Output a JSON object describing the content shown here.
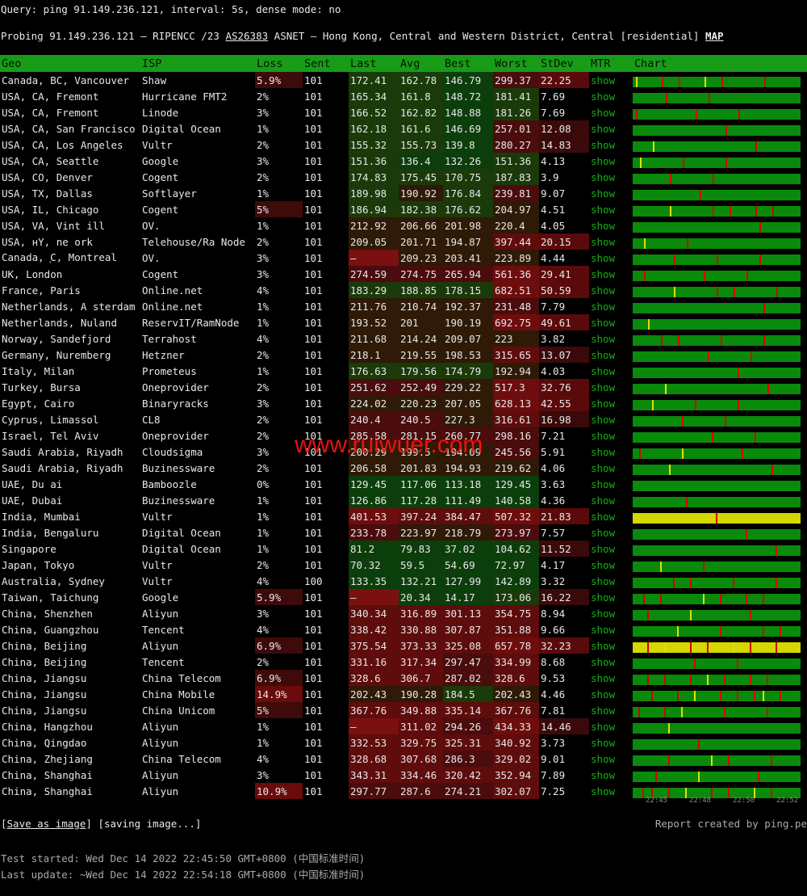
{
  "query_line": "Query: ping 91.149.236.121, interval: 5s, dense mode: no",
  "probe": {
    "prefix": "Probing 91.149.236.121 — RIPENCC /23 ",
    "asn": "AS26383",
    "suffix": " ASNET — Hong Kong, Central and Western District, Central [residential] ",
    "map": "MAP"
  },
  "columns": [
    "Geo",
    "ISP",
    "Loss",
    "Sent",
    "Last",
    "Avg",
    "Best",
    "Worst",
    "StDev",
    "MTR",
    "Chart"
  ],
  "rows": [
    {
      "geo": "Canada, BC, Vancouver",
      "isp": "Shaw",
      "loss": "5.9%",
      "sent": "101",
      "last": "172.41",
      "avg": "162.78",
      "best": "146.79",
      "worst": "299.37",
      "stdev": "22.25"
    },
    {
      "geo": "USA, CA, Fremont",
      "isp": "Hurricane FMT2",
      "loss": "2%",
      "sent": "101",
      "last": "165.34",
      "avg": "161.8",
      "best": "148.72",
      "worst": "181.41",
      "stdev": "7.69"
    },
    {
      "geo": "USA, CA, Fremont",
      "isp": "Linode",
      "loss": "3%",
      "sent": "101",
      "last": "166.52",
      "avg": "162.82",
      "best": "148.88",
      "worst": "181.26",
      "stdev": "7.69"
    },
    {
      "geo": "USA, CA, San Francisco",
      "isp": "Digital Ocean",
      "loss": "1%",
      "sent": "101",
      "last": "162.18",
      "avg": "161.6",
      "best": "146.69",
      "worst": "257.01",
      "stdev": "12.08"
    },
    {
      "geo": "USA, CA, Los Angeles",
      "isp": "Vultr",
      "loss": "2%",
      "sent": "101",
      "last": "155.32",
      "avg": "155.73",
      "best": "139.8",
      "worst": "280.27",
      "stdev": "14.83"
    },
    {
      "geo": "USA, CA, Seattle",
      "isp": "Google",
      "loss": "3%",
      "sent": "101",
      "last": "151.36",
      "avg": "136.4",
      "best": "132.26",
      "worst": "151.36",
      "stdev": "4.13"
    },
    {
      "geo": "USA, CO, Denver",
      "isp": "Cogent",
      "loss": "2%",
      "sent": "101",
      "last": "174.83",
      "avg": "175.45",
      "best": "170.75",
      "worst": "187.83",
      "stdev": "3.9"
    },
    {
      "geo": "USA, TX, Dallas",
      "isp": "Softlayer",
      "loss": "1%",
      "sent": "101",
      "last": "189.98",
      "avg": "190.92",
      "best": "176.84",
      "worst": "239.81",
      "stdev": "9.07"
    },
    {
      "geo": "USA, IL, Chicago",
      "isp": "Cogent",
      "loss": "5%",
      "sent": "101",
      "last": "186.94",
      "avg": "182.38",
      "best": "176.62",
      "worst": "204.97",
      "stdev": "4.51"
    },
    {
      "geo": "USA, VA, Vint  ill",
      "isp": "OV.",
      "loss": "1%",
      "sent": "101",
      "last": "212.92",
      "avg": "206.66",
      "best": "201.98",
      "worst": "220.4",
      "stdev": "4.05"
    },
    {
      "geo": "USA, нY, ne  ork",
      "isp": "Telehouse/Ra Node",
      "loss": "2%",
      "sent": "101",
      "last": "209.05",
      "avg": "201.71",
      "best": "194.87",
      "worst": "397.44",
      "stdev": "20.15"
    },
    {
      "geo": "Canada, ͅC, Montreal",
      "isp": "OV.",
      "loss": "3%",
      "sent": "101",
      "last": "—",
      "avg": "209.23",
      "best": "203.41",
      "worst": "223.89",
      "stdev": "4.44"
    },
    {
      "geo": "UK, London",
      "isp": "Cogent",
      "loss": "3%",
      "sent": "101",
      "last": "274.59",
      "avg": "274.75",
      "best": "265.94",
      "worst": "561.36",
      "stdev": "29.41"
    },
    {
      "geo": "France, Paris",
      "isp": "Online.net",
      "loss": "4%",
      "sent": "101",
      "last": "183.29",
      "avg": "188.85",
      "best": "178.15",
      "worst": "682.51",
      "stdev": "50.59"
    },
    {
      "geo": "Netherlands, A sterdam",
      "isp": "Online.net",
      "loss": "1%",
      "sent": "101",
      "last": "211.76",
      "avg": "210.74",
      "best": "192.37",
      "worst": "231.48",
      "stdev": "7.79"
    },
    {
      "geo": "Netherlands, Nuland",
      "isp": "ReservIT/RamNode",
      "loss": "1%",
      "sent": "101",
      "last": "193.52",
      "avg": "201",
      "best": "190.19",
      "worst": "692.75",
      "stdev": "49.61"
    },
    {
      "geo": "Norway, Sandefjord",
      "isp": "Terrahost",
      "loss": "4%",
      "sent": "101",
      "last": "211.68",
      "avg": "214.24",
      "best": "209.07",
      "worst": "223",
      "stdev": "3.82"
    },
    {
      "geo": "Germany, Nuremberg",
      "isp": "Hetzner",
      "loss": "2%",
      "sent": "101",
      "last": "218.1",
      "avg": "219.55",
      "best": "198.53",
      "worst": "315.65",
      "stdev": "13.07"
    },
    {
      "geo": "Italy, Milan",
      "isp": "Prometeus",
      "loss": "1%",
      "sent": "101",
      "last": "176.63",
      "avg": "179.56",
      "best": "174.79",
      "worst": "192.94",
      "stdev": "4.03"
    },
    {
      "geo": "Turkey, Bursa",
      "isp": "Oneprovider",
      "loss": "2%",
      "sent": "101",
      "last": "251.62",
      "avg": "252.49",
      "best": "229.22",
      "worst": "517.3",
      "stdev": "32.76"
    },
    {
      "geo": "Egypt, Cairo",
      "isp": "Binaryracks",
      "loss": "3%",
      "sent": "101",
      "last": "224.02",
      "avg": "220.23",
      "best": "207.05",
      "worst": "628.13",
      "stdev": "42.55"
    },
    {
      "geo": "Cyprus, Limassol",
      "isp": "CL8",
      "loss": "2%",
      "sent": "101",
      "last": "240.4",
      "avg": "240.5",
      "best": "227.3",
      "worst": "316.61",
      "stdev": "16.98"
    },
    {
      "geo": "Israel, Tel Aviv",
      "isp": "Oneprovider",
      "loss": "2%",
      "sent": "101",
      "last": "285.58",
      "avg": "281.15",
      "best": "260.77",
      "worst": "298.16",
      "stdev": "7.21"
    },
    {
      "geo": "Saudi Arabia, Riyadh",
      "isp": "Cloudsigma",
      "loss": "3%",
      "sent": "101",
      "last": "200.29",
      "avg": "199.5",
      "best": "194.09",
      "worst": "245.56",
      "stdev": "5.91"
    },
    {
      "geo": "Saudi Arabia, Riyadh",
      "isp": "Buzinessware",
      "loss": "2%",
      "sent": "101",
      "last": "206.58",
      "avg": "201.83",
      "best": "194.93",
      "worst": "219.62",
      "stdev": "4.06"
    },
    {
      "geo": "UAE, Du ai",
      "isp": "Bamboozle",
      "loss": "0%",
      "sent": "101",
      "last": "129.45",
      "avg": "117.06",
      "best": "113.18",
      "worst": "129.45",
      "stdev": "3.63"
    },
    {
      "geo": "UAE, Dubai",
      "isp": "Buzinessware",
      "loss": "1%",
      "sent": "101",
      "last": "126.86",
      "avg": "117.28",
      "best": "111.49",
      "worst": "140.58",
      "stdev": "4.36"
    },
    {
      "geo": "India, Mumbai",
      "isp": "Vultr",
      "loss": "1%",
      "sent": "101",
      "last": "401.53",
      "avg": "397.24",
      "best": "384.47",
      "worst": "507.32",
      "stdev": "21.83"
    },
    {
      "geo": "India, Bengaluru",
      "isp": "Digital Ocean",
      "loss": "1%",
      "sent": "101",
      "last": "233.78",
      "avg": "223.97",
      "best": "218.79",
      "worst": "273.97",
      "stdev": "7.57"
    },
    {
      "geo": "Singapore",
      "isp": "Digital Ocean",
      "loss": "1%",
      "sent": "101",
      "last": "81.2",
      "avg": "79.83",
      "best": "37.02",
      "worst": "104.62",
      "stdev": "11.52"
    },
    {
      "geo": "Japan, Tokyo",
      "isp": "Vultr",
      "loss": "2%",
      "sent": "101",
      "last": "70.32",
      "avg": "59.5",
      "best": "54.69",
      "worst": "72.97",
      "stdev": "4.17"
    },
    {
      "geo": "Australia, Sydney",
      "isp": "Vultr",
      "loss": "4%",
      "sent": "100",
      "last": "133.35",
      "avg": "132.21",
      "best": "127.99",
      "worst": "142.89",
      "stdev": "3.32"
    },
    {
      "geo": "Taiwan, Taichung",
      "isp": "Google",
      "loss": "5.9%",
      "sent": "101",
      "last": "—",
      "avg": "20.34",
      "best": "14.17",
      "worst": "173.06",
      "stdev": "16.22"
    },
    {
      "geo": "China, Shenzhen",
      "isp": "Aliyun",
      "loss": "3%",
      "sent": "101",
      "last": "340.34",
      "avg": "316.89",
      "best": "301.13",
      "worst": "354.75",
      "stdev": "8.94"
    },
    {
      "geo": "China, Guangzhou",
      "isp": "Tencent",
      "loss": "4%",
      "sent": "101",
      "last": "338.42",
      "avg": "330.88",
      "best": "307.87",
      "worst": "351.88",
      "stdev": "9.66"
    },
    {
      "geo": "China, Beijing",
      "isp": "Aliyun",
      "loss": "6.9%",
      "sent": "101",
      "last": "375.54",
      "avg": "373.33",
      "best": "325.08",
      "worst": "657.78",
      "stdev": "32.23"
    },
    {
      "geo": "China, Beijing",
      "isp": "Tencent",
      "loss": "2%",
      "sent": "101",
      "last": "331.16",
      "avg": "317.34",
      "best": "297.47",
      "worst": "334.99",
      "stdev": "8.68"
    },
    {
      "geo": "China, Jiangsu",
      "isp": "China Telecom",
      "loss": "6.9%",
      "sent": "101",
      "last": "328.6",
      "avg": "306.7",
      "best": "287.02",
      "worst": "328.6",
      "stdev": "9.53"
    },
    {
      "geo": "China, Jiangsu",
      "isp": "China Mobile",
      "loss": "14.9%",
      "sent": "101",
      "last": "202.43",
      "avg": "190.28",
      "best": "184.5",
      "worst": "202.43",
      "stdev": "4.46"
    },
    {
      "geo": "China, Jiangsu",
      "isp": "China Unicom",
      "loss": "5%",
      "sent": "101",
      "last": "367.76",
      "avg": "349.88",
      "best": "335.14",
      "worst": "367.76",
      "stdev": "7.81"
    },
    {
      "geo": "China, Hangzhou",
      "isp": "Aliyun",
      "loss": "1%",
      "sent": "101",
      "last": "—",
      "avg": "311.02",
      "best": "294.26",
      "worst": "434.33",
      "stdev": "14.46"
    },
    {
      "geo": "China, Qingdao",
      "isp": "Aliyun",
      "loss": "1%",
      "sent": "101",
      "last": "332.53",
      "avg": "329.75",
      "best": "325.31",
      "worst": "340.92",
      "stdev": "3.73"
    },
    {
      "geo": "China, Zhejiang",
      "isp": "China Telecom",
      "loss": "4%",
      "sent": "101",
      "last": "328.68",
      "avg": "307.68",
      "best": "286.3",
      "worst": "329.02",
      "stdev": "9.01"
    },
    {
      "geo": "China, Shanghai",
      "isp": "Aliyun",
      "loss": "3%",
      "sent": "101",
      "last": "343.31",
      "avg": "334.46",
      "best": "320.42",
      "worst": "352.94",
      "stdev": "7.89"
    },
    {
      "geo": "China, Shanghai",
      "isp": "Aliyun",
      "loss": "10.9%",
      "sent": "101",
      "last": "297.77",
      "avg": "287.6",
      "best": "274.21",
      "worst": "302.07",
      "stdev": "7.25"
    }
  ],
  "mtr_label": "show",
  "chart_time_labels": [
    "22:45",
    "22:48",
    "22:50",
    "22:52"
  ],
  "watermark": "www.ruiwuer.com",
  "save_button": "Save as image",
  "saving_status": "[saving image...]",
  "report": "Report created by ping.pe",
  "test_started": "Test started: Wed Dec 14 2022 22:45:50 GMT+0800 (中国标准时间)",
  "last_update": "Last update: ~Wed Dec 14 2022 22:54:18 GMT+0800 (中国标准时间)",
  "colors": {
    "header_green": "#189c18",
    "mtr_green": "#12b312",
    "loss_red": "#d40000",
    "jitter_yellow": "#d6d600"
  }
}
